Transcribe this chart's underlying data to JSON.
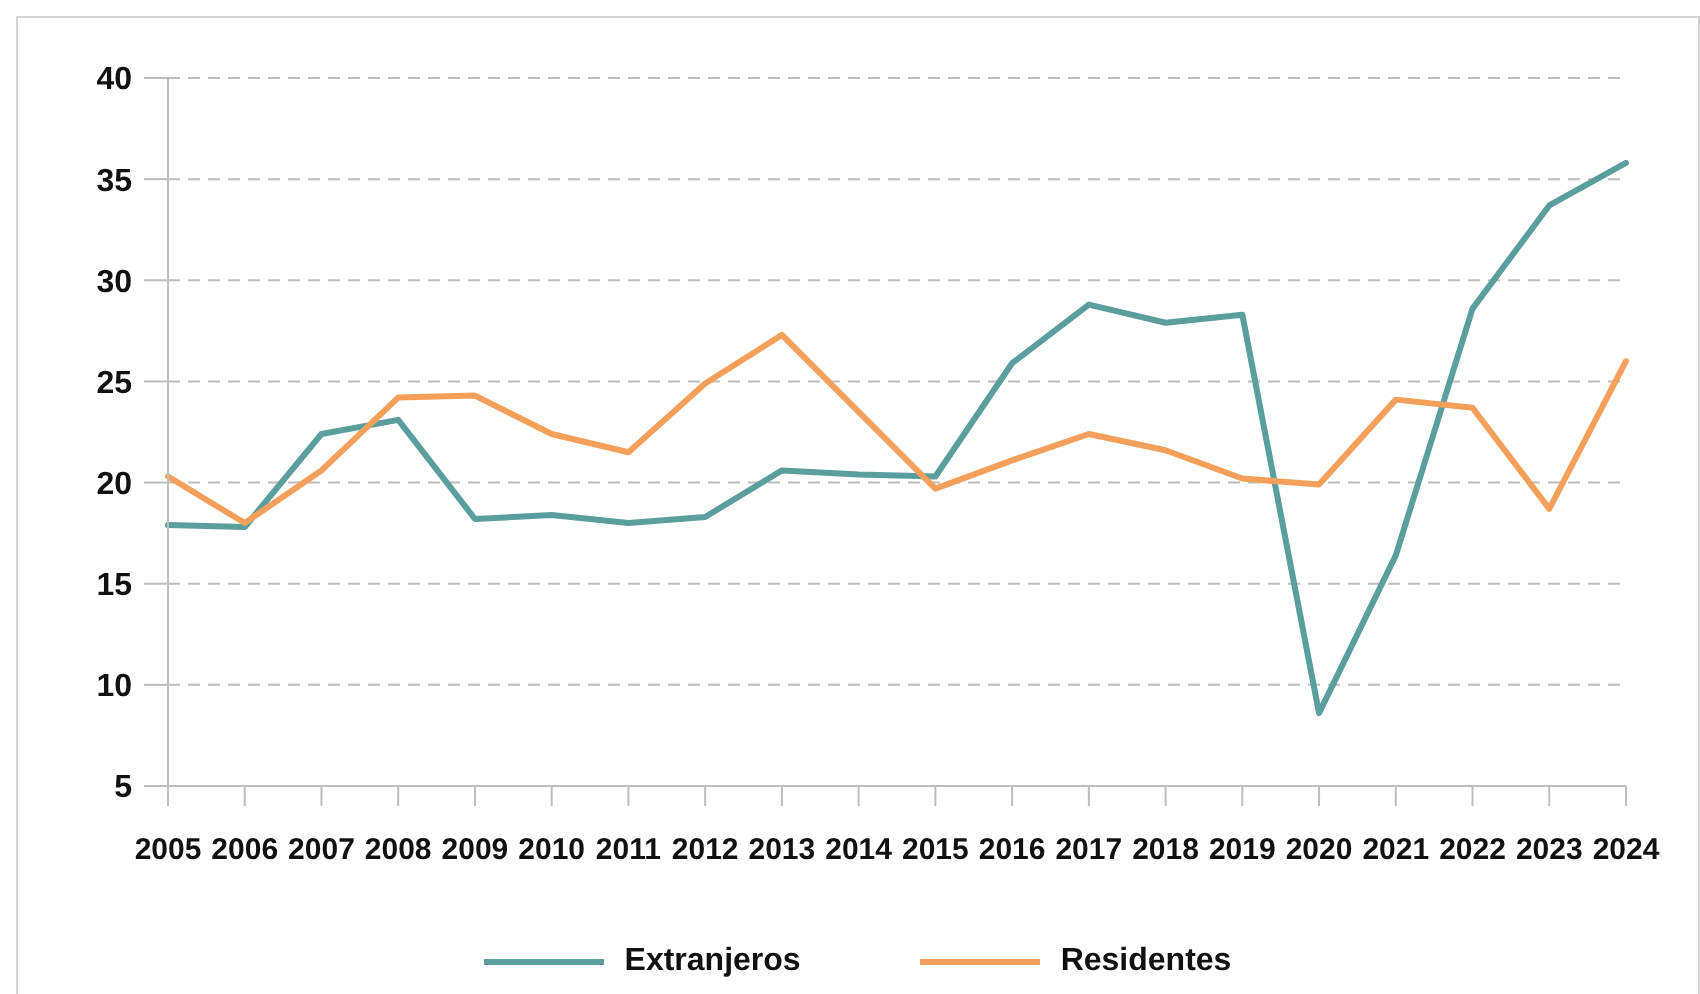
{
  "chart_data": {
    "type": "line",
    "categories": [
      "2005",
      "2006",
      "2007",
      "2008",
      "2009",
      "2010",
      "2011",
      "2012",
      "2013",
      "2014",
      "2015",
      "2016",
      "2017",
      "2018",
      "2019",
      "2020",
      "2021",
      "2022",
      "2023",
      "2024"
    ],
    "series": [
      {
        "name": "Extranjeros",
        "color": "#5b9e9e",
        "values": [
          17.9,
          17.8,
          22.4,
          23.1,
          18.2,
          18.4,
          18.0,
          18.3,
          20.6,
          20.4,
          20.3,
          25.9,
          28.8,
          27.9,
          28.3,
          8.6,
          16.4,
          28.6,
          33.7,
          35.8
        ]
      },
      {
        "name": "Residentes",
        "color": "#f5a05a",
        "values": [
          20.3,
          18.0,
          20.6,
          24.2,
          24.3,
          22.4,
          21.5,
          24.9,
          27.3,
          23.5,
          19.7,
          21.1,
          22.4,
          21.6,
          20.2,
          19.9,
          24.1,
          23.7,
          18.7,
          26.0
        ]
      }
    ],
    "ylim": [
      5,
      40
    ],
    "yticks": [
      5,
      10,
      15,
      20,
      25,
      30,
      35,
      40
    ],
    "grid": "y",
    "legend": "bottom",
    "marker": "none",
    "line_style": "solid"
  }
}
